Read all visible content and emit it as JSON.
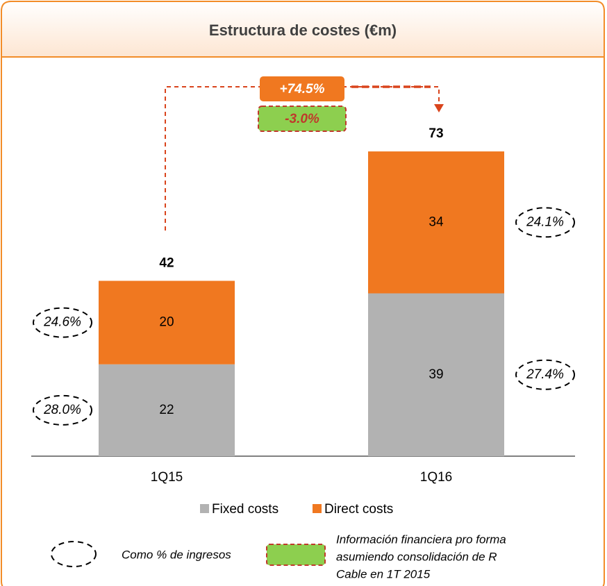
{
  "chart_data": {
    "type": "bar",
    "stacked": true,
    "title": "Estructura de costes (€m)",
    "categories": [
      "1Q15",
      "1Q16"
    ],
    "series": [
      {
        "name": "Fixed costs",
        "color": "#b2b2b2",
        "values": [
          22,
          39
        ],
        "ratio_values": [
          28.0,
          27.4
        ],
        "ratio_labels": [
          "28.0%",
          "27.4%"
        ]
      },
      {
        "name": "Direct costs",
        "color": "#f07820",
        "values": [
          20,
          34
        ],
        "ratio_values": [
          24.6,
          24.1
        ],
        "ratio_labels": [
          "24.6%",
          "24.1%"
        ]
      }
    ],
    "totals": [
      42,
      73
    ],
    "ylim": [
      0,
      80
    ],
    "growth": [
      {
        "value": 74.5,
        "label": "+74.5%"
      },
      {
        "value": -3.0,
        "label": "-3.0%"
      }
    ],
    "notes": {
      "ratio": "Como % de ingresos",
      "pro_forma": [
        "Información financiera pro forma",
        "asumiendo consolidación de R",
        "Cable en 1T 2015"
      ]
    }
  }
}
